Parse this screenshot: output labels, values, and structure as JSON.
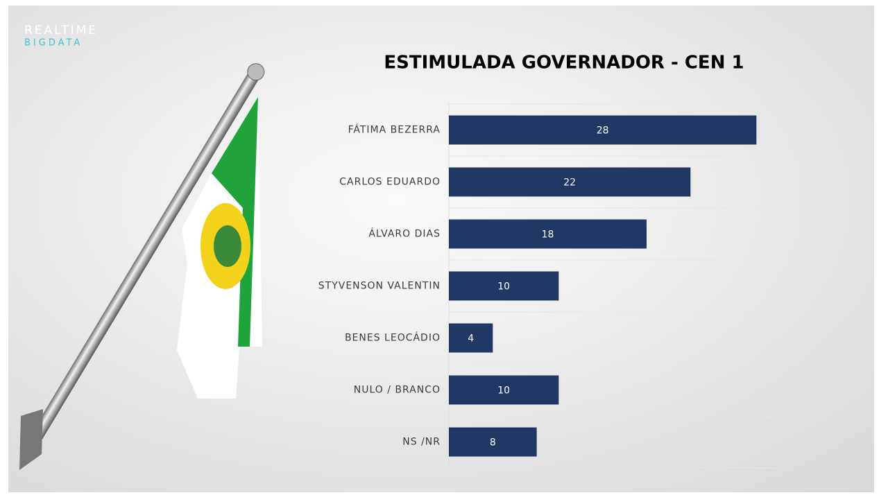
{
  "logo": {
    "line1": "REALTIME",
    "line2": "BIGDATA"
  },
  "chart_data": {
    "type": "bar",
    "orientation": "horizontal",
    "title": "ESTIMULADA GOVERNADOR - CEN 1",
    "categories": [
      "FÁTIMA BEZERRA",
      "CARLOS EDUARDO",
      "ÁLVARO DIAS",
      "STYVENSON VALENTIN",
      "BENES LEOCÁDIO",
      "NULO / BRANCO",
      "NS /NR"
    ],
    "values": [
      28,
      22,
      18,
      10,
      4,
      10,
      8
    ],
    "color": "#1f3864",
    "xlim": [
      0,
      30
    ]
  }
}
